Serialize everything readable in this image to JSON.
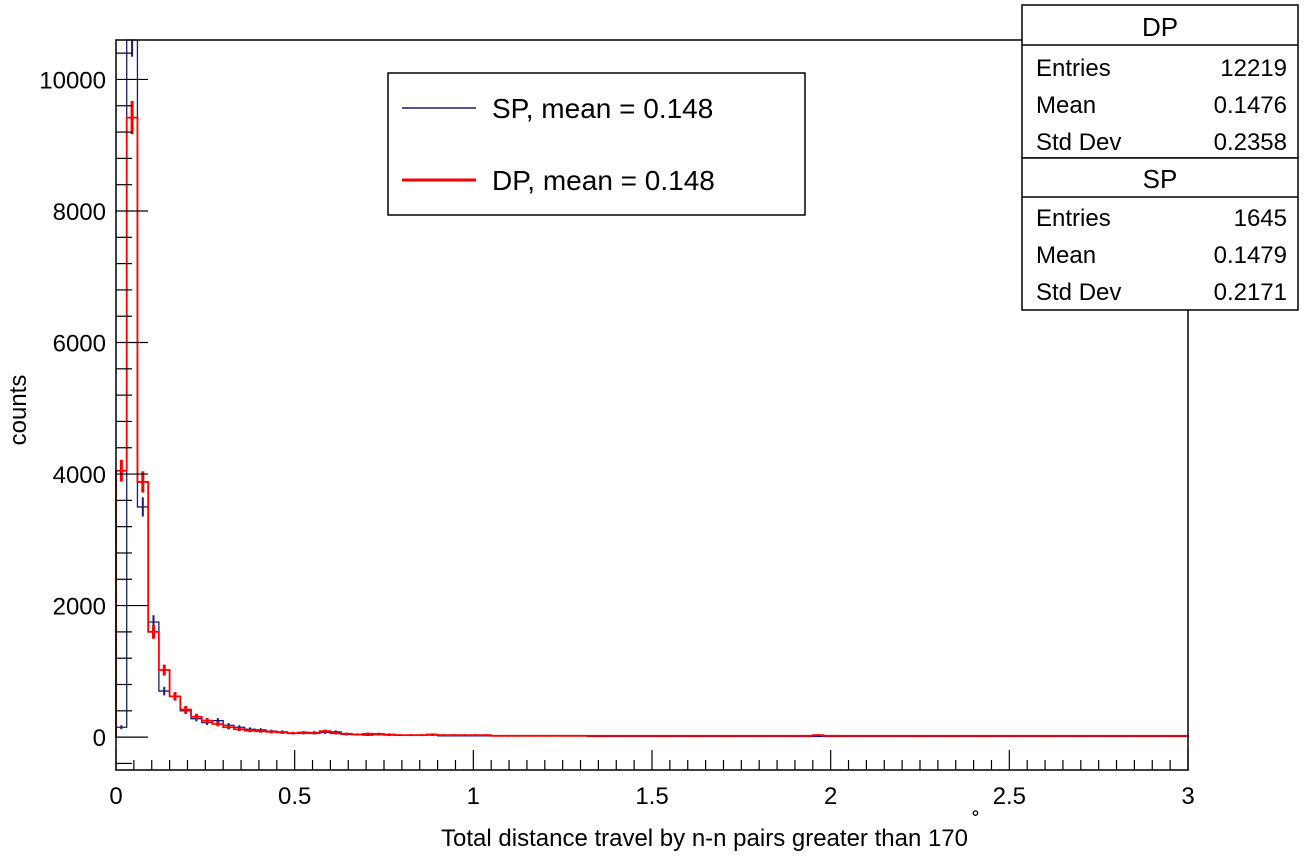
{
  "chart_data": {
    "type": "histogram",
    "xlabel": "Total distance travel by n-n pairs greater than 170",
    "xlabel_superscript": "˚",
    "ylabel": "counts",
    "xlim": [
      0,
      3
    ],
    "ylim": [
      -500,
      10600
    ],
    "x_ticks": [
      "0",
      "0.5",
      "1",
      "1.5",
      "2",
      "2.5",
      "3"
    ],
    "y_ticks": [
      "0",
      "2000",
      "4000",
      "6000",
      "8000",
      "10000"
    ],
    "bin_width": 0.03,
    "legend": [
      {
        "label": "SP, mean = 0.148",
        "color": "#1a1a7a"
      },
      {
        "label": "DP, mean = 0.148",
        "color": "#ff0000"
      }
    ],
    "stats": [
      {
        "name": "DP",
        "rows": [
          {
            "label": "Entries",
            "value": "12219"
          },
          {
            "label": "Mean",
            "value": "0.1476"
          },
          {
            "label": "Std Dev",
            "value": "0.2358"
          }
        ]
      },
      {
        "name": "SP",
        "rows": [
          {
            "label": "Entries",
            "value": "1645"
          },
          {
            "label": "Mean",
            "value": "0.1479"
          },
          {
            "label": "Std Dev",
            "value": "0.2171"
          }
        ]
      }
    ],
    "series": [
      {
        "name": "SP",
        "color": "#1a1a7a",
        "values": [
          150,
          10600,
          3500,
          1750,
          700,
          620,
          400,
          280,
          220,
          250,
          180,
          150,
          120,
          110,
          90,
          80,
          60,
          60,
          70,
          70,
          80,
          40,
          40,
          30,
          50,
          30,
          30,
          30,
          30,
          30,
          20,
          20,
          20,
          20,
          20,
          20,
          20,
          20,
          20,
          20,
          20,
          20,
          20,
          20,
          10,
          10,
          10,
          10,
          10,
          10,
          10,
          10,
          10,
          10,
          10,
          10,
          10,
          10,
          10,
          10,
          10,
          10,
          10,
          10,
          10,
          10,
          10,
          10,
          10,
          10,
          10,
          10,
          10,
          10,
          10,
          10,
          10,
          10,
          10,
          10,
          10,
          10,
          10,
          10,
          10,
          10,
          10,
          10,
          10,
          10,
          10,
          10,
          10,
          10,
          10,
          10,
          10,
          10,
          10,
          10
        ],
        "err_scale": 2.47
      },
      {
        "name": "DP",
        "color": "#ff0000",
        "values": [
          4050,
          9420,
          3880,
          1600,
          1020,
          620,
          420,
          310,
          250,
          200,
          150,
          120,
          100,
          90,
          80,
          70,
          60,
          70,
          60,
          90,
          60,
          50,
          40,
          50,
          40,
          40,
          30,
          30,
          30,
          40,
          30,
          30,
          30,
          30,
          30,
          20,
          20,
          20,
          20,
          20,
          20,
          20,
          20,
          20,
          20,
          20,
          20,
          20,
          20,
          20,
          20,
          20,
          20,
          20,
          20,
          20,
          20,
          20,
          20,
          20,
          20,
          20,
          20,
          20,
          20,
          30,
          20,
          20,
          20,
          20,
          20,
          20,
          20,
          20,
          20,
          20,
          20,
          20,
          20,
          20,
          20,
          20,
          20,
          20,
          20,
          20,
          20,
          20,
          20,
          20,
          20,
          20,
          20,
          20,
          20,
          20,
          20,
          20,
          20,
          20
        ],
        "err_scale": 2.6
      }
    ]
  }
}
